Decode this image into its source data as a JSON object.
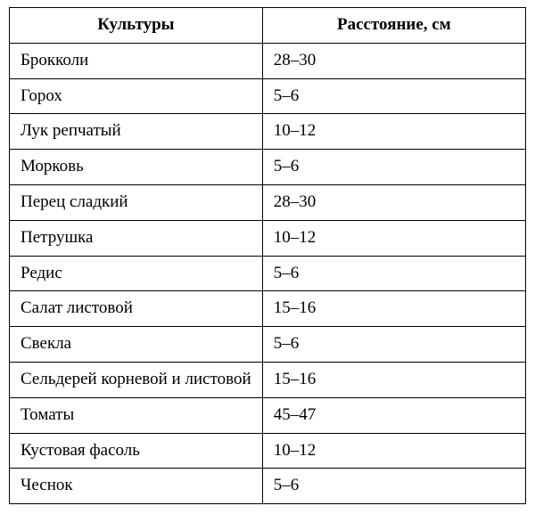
{
  "table": {
    "type": "table",
    "background_color": "#ffffff",
    "border_color": "#000000",
    "text_color": "#000000",
    "font_family": "Georgia, Times New Roman, serif",
    "header_fontsize": 19,
    "cell_fontsize": 19,
    "col_widths_pct": [
      49,
      51
    ],
    "columns": [
      "Культуры",
      "Расстояние, см"
    ],
    "rows": [
      [
        "Брокколи",
        "28–30"
      ],
      [
        "Горох",
        "5–6"
      ],
      [
        "Лук репчатый",
        "10–12"
      ],
      [
        "Морковь",
        "5–6"
      ],
      [
        "Перец сладкий",
        "28–30"
      ],
      [
        "Петрушка",
        "10–12"
      ],
      [
        "Редис",
        "5–6"
      ],
      [
        "Салат листовой",
        "15–16"
      ],
      [
        "Свекла",
        "5–6"
      ],
      [
        "Сельдерей корневой и листовой",
        "15–16"
      ],
      [
        "Томаты",
        "45–47"
      ],
      [
        "Кустовая фасоль",
        "10–12"
      ],
      [
        "Чеснок",
        "5–6"
      ]
    ]
  }
}
